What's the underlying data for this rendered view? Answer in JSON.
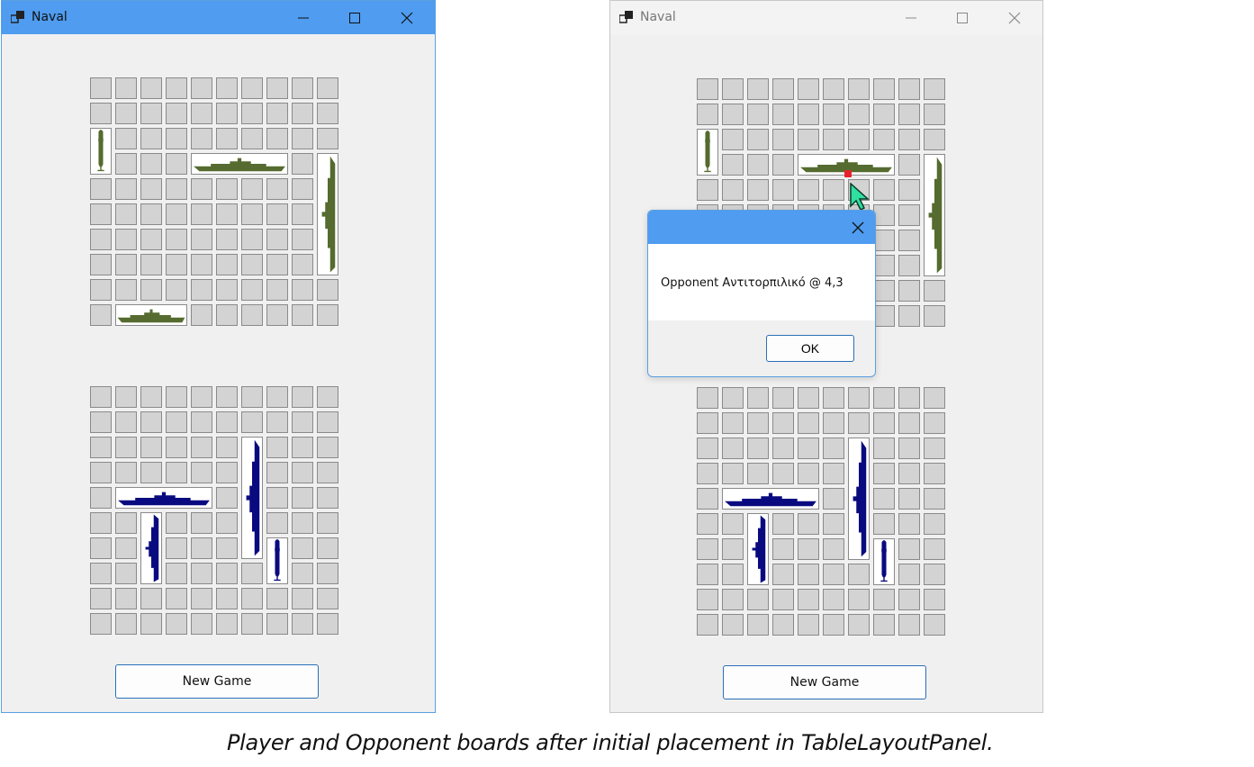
{
  "left_window": {
    "title": "Naval",
    "new_game_label": "New Game"
  },
  "right_window": {
    "title": "Naval",
    "new_game_label": "New Game"
  },
  "dialog": {
    "message": "Opponent Αντιτορπιλικό @ 4,3",
    "ok_label": "OK"
  },
  "caption": "Player and Opponent boards after initial placement in TableLayoutPanel.",
  "colors": {
    "opponent_ship": "#556b2f",
    "player_ship": "#0a0a80",
    "hit_marker": "#e8202a",
    "title_active": "#4f9cf0"
  },
  "icons": {
    "app": "app-icon",
    "minimize": "minimize-icon",
    "maximize": "maximize-icon",
    "close": "close-icon",
    "cursor": "pointer-cursor-icon"
  }
}
